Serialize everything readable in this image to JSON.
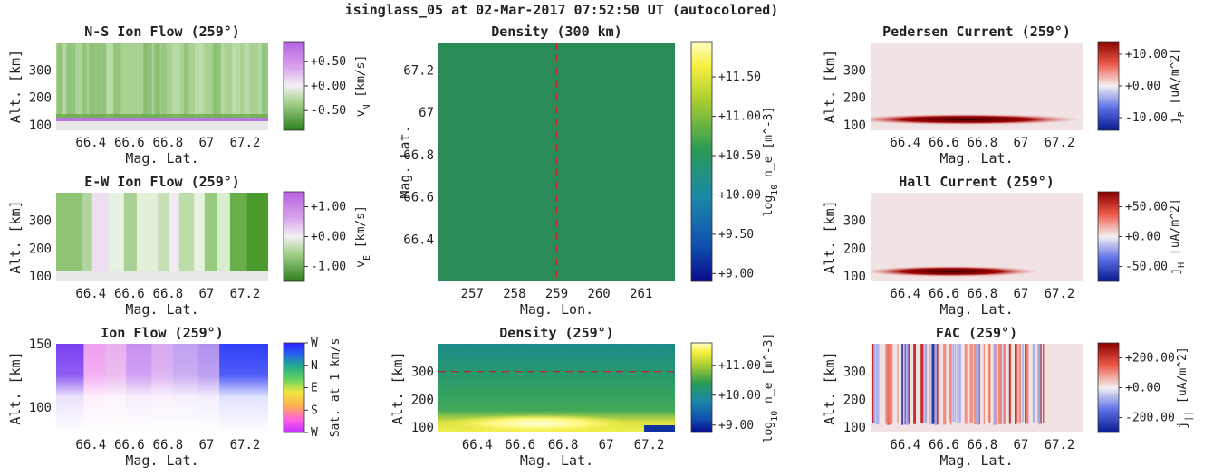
{
  "figure": {
    "title": "isinglass_05 at 02-Mar-2017 07:52:50 UT (autocolored)"
  },
  "colors": {
    "green": "#4a9a2e",
    "violet": "#c274e6",
    "red": "#8b0000",
    "blue": "#0a1a8f",
    "yellow": "#ffff80",
    "viridis_mid": "#2a8a55"
  },
  "chart_data": [
    {
      "id": "ns",
      "type": "heatmap",
      "title": "N-S Ion Flow (259°)",
      "xlabel": "Mag. Lat.",
      "ylabel": "Alt. [km]",
      "xticks": [
        "66.4",
        "66.6",
        "66.8",
        "67",
        "67.2"
      ],
      "xtick_values": [
        66.4,
        66.6,
        66.8,
        67,
        67.2
      ],
      "yticks": [
        "100",
        "200",
        "300"
      ],
      "ytick_values": [
        100,
        200,
        300
      ],
      "xlim": [
        66.22,
        67.32
      ],
      "ylim": [
        80,
        400
      ],
      "colorbar": {
        "label": "v",
        "sub": "N",
        "unit": "[km/s]",
        "ticks": [
          "+0.50",
          "+0.00",
          "-0.50"
        ],
        "tick_values": [
          0.5,
          0,
          -0.5
        ],
        "range": [
          -0.9,
          0.9
        ],
        "map": "prgn"
      }
    },
    {
      "id": "den300",
      "type": "heatmap",
      "title": "Density (300 km)",
      "xlabel": "Mag. Lon.",
      "ylabel": "Mag. Lat.",
      "xticks": [
        "257",
        "258",
        "259",
        "260",
        "261"
      ],
      "xtick_values": [
        257,
        258,
        259,
        260,
        261
      ],
      "yticks": [
        "66.4",
        "66.6",
        "66.8",
        "67",
        "67.2"
      ],
      "ytick_values": [
        66.4,
        66.6,
        66.8,
        67,
        67.2
      ],
      "xlim": [
        256.2,
        261.8
      ],
      "ylim": [
        66.2,
        67.33
      ],
      "marker": "lon = 259",
      "colorbar": {
        "label": "log",
        "sub": "10",
        "unit": "n_e [m^-3]",
        "ticks": [
          "+11.50",
          "+11.00",
          "+10.50",
          "+10.00",
          "+9.50",
          "+9.00"
        ],
        "tick_values": [
          11.5,
          11,
          10.5,
          10,
          9.5,
          9
        ],
        "range": [
          8.9,
          11.95
        ],
        "map": "viridis"
      }
    },
    {
      "id": "ped",
      "type": "heatmap",
      "title": "Pedersen Current (259°)",
      "xlabel": "Mag. Lat.",
      "ylabel": "Alt. [km]",
      "xticks": [
        "66.4",
        "66.6",
        "66.8",
        "67",
        "67.2"
      ],
      "xtick_values": [
        66.4,
        66.6,
        66.8,
        67,
        67.2
      ],
      "yticks": [
        "100",
        "200",
        "300"
      ],
      "ytick_values": [
        100,
        200,
        300
      ],
      "xlim": [
        66.22,
        67.32
      ],
      "ylim": [
        80,
        400
      ],
      "colorbar": {
        "label": "j",
        "sub": "P",
        "unit": "[uA/m^2]",
        "ticks": [
          "+10.00",
          "+0.00",
          "-10.00"
        ],
        "tick_values": [
          10,
          0,
          -10
        ],
        "range": [
          -14,
          14
        ],
        "map": "bwr"
      }
    },
    {
      "id": "ew",
      "type": "heatmap",
      "title": "E-W Ion Flow (259°)",
      "xlabel": "Mag. Lat.",
      "ylabel": "Alt. [km]",
      "xticks": [
        "66.4",
        "66.6",
        "66.8",
        "67",
        "67.2"
      ],
      "xtick_values": [
        66.4,
        66.6,
        66.8,
        67,
        67.2
      ],
      "yticks": [
        "100",
        "200",
        "300"
      ],
      "ytick_values": [
        100,
        200,
        300
      ],
      "xlim": [
        66.22,
        67.32
      ],
      "ylim": [
        80,
        400
      ],
      "colorbar": {
        "label": "v",
        "sub": "E",
        "unit": "[km/s]",
        "ticks": [
          "+1.00",
          "+0.00",
          "-1.00"
        ],
        "tick_values": [
          1,
          0,
          -1
        ],
        "range": [
          -1.5,
          1.5
        ],
        "map": "prgn"
      }
    },
    {
      "id": "hall",
      "type": "heatmap",
      "title": "Hall Current (259°)",
      "xlabel": "Mag. Lat.",
      "ylabel": "Alt. [km]",
      "xticks": [
        "66.4",
        "66.6",
        "66.8",
        "67",
        "67.2"
      ],
      "xtick_values": [
        66.4,
        66.6,
        66.8,
        67,
        67.2
      ],
      "yticks": [
        "100",
        "200",
        "300"
      ],
      "ytick_values": [
        100,
        200,
        300
      ],
      "xlim": [
        66.22,
        67.32
      ],
      "ylim": [
        80,
        400
      ],
      "colorbar": {
        "label": "j",
        "sub": "H",
        "unit": "[uA/m^2]",
        "ticks": [
          "+50.00",
          "+0.00",
          "-50.00"
        ],
        "tick_values": [
          50,
          0,
          -50
        ],
        "range": [
          -75,
          75
        ],
        "map": "bwr"
      }
    },
    {
      "id": "ion",
      "type": "heatmap",
      "title": "Ion Flow (259°)",
      "xlabel": "Mag. Lat.",
      "ylabel": "Alt. [km]",
      "xticks": [
        "66.4",
        "66.6",
        "66.8",
        "67",
        "67.2"
      ],
      "xtick_values": [
        66.4,
        66.6,
        66.8,
        67,
        67.2
      ],
      "yticks": [
        "100",
        "150"
      ],
      "ytick_values": [
        100,
        150
      ],
      "xlim": [
        66.22,
        67.32
      ],
      "ylim": [
        80,
        150
      ],
      "colorbar": {
        "label": "Sat. at 1 km/s",
        "sub": "",
        "unit": "",
        "ticks": [
          "W",
          "N",
          "E",
          "S",
          "W"
        ],
        "tick_values": [
          4,
          3,
          2,
          1,
          0
        ],
        "range": [
          0,
          4
        ],
        "map": "hsv"
      }
    },
    {
      "id": "den259",
      "type": "heatmap",
      "title": "Density (259°)",
      "xlabel": "Mag. Lat.",
      "ylabel": "Alt. [km]",
      "xticks": [
        "66.4",
        "66.6",
        "66.8",
        "67",
        "67.2"
      ],
      "xtick_values": [
        66.4,
        66.6,
        66.8,
        67,
        67.2
      ],
      "yticks": [
        "100",
        "200",
        "300"
      ],
      "ytick_values": [
        100,
        200,
        300
      ],
      "xlim": [
        66.22,
        67.32
      ],
      "ylim": [
        80,
        400
      ],
      "marker": "alt = 300 km",
      "colorbar": {
        "label": "log",
        "sub": "10",
        "unit": "n_e [m^-3]",
        "ticks": [
          "+11.00",
          "+10.00",
          "+9.00"
        ],
        "tick_values": [
          11,
          10,
          9
        ],
        "range": [
          8.75,
          11.75
        ],
        "map": "viridis"
      }
    },
    {
      "id": "fac",
      "type": "heatmap",
      "title": "FAC (259°)",
      "xlabel": "Mag. Lat.",
      "ylabel": "Alt. [km]",
      "xticks": [
        "66.4",
        "66.6",
        "66.8",
        "67",
        "67.2"
      ],
      "xtick_values": [
        66.4,
        66.6,
        66.8,
        67,
        67.2
      ],
      "yticks": [
        "100",
        "200",
        "300"
      ],
      "ytick_values": [
        100,
        200,
        300
      ],
      "xlim": [
        66.22,
        67.32
      ],
      "ylim": [
        80,
        400
      ],
      "colorbar": {
        "label": "j",
        "sub": "||",
        "unit": "[uA/m^2]",
        "ticks": [
          "+200.00",
          "+0.00",
          "-200.00"
        ],
        "tick_values": [
          200,
          0,
          -200
        ],
        "range": [
          -300,
          300
        ],
        "map": "bwr"
      }
    }
  ]
}
